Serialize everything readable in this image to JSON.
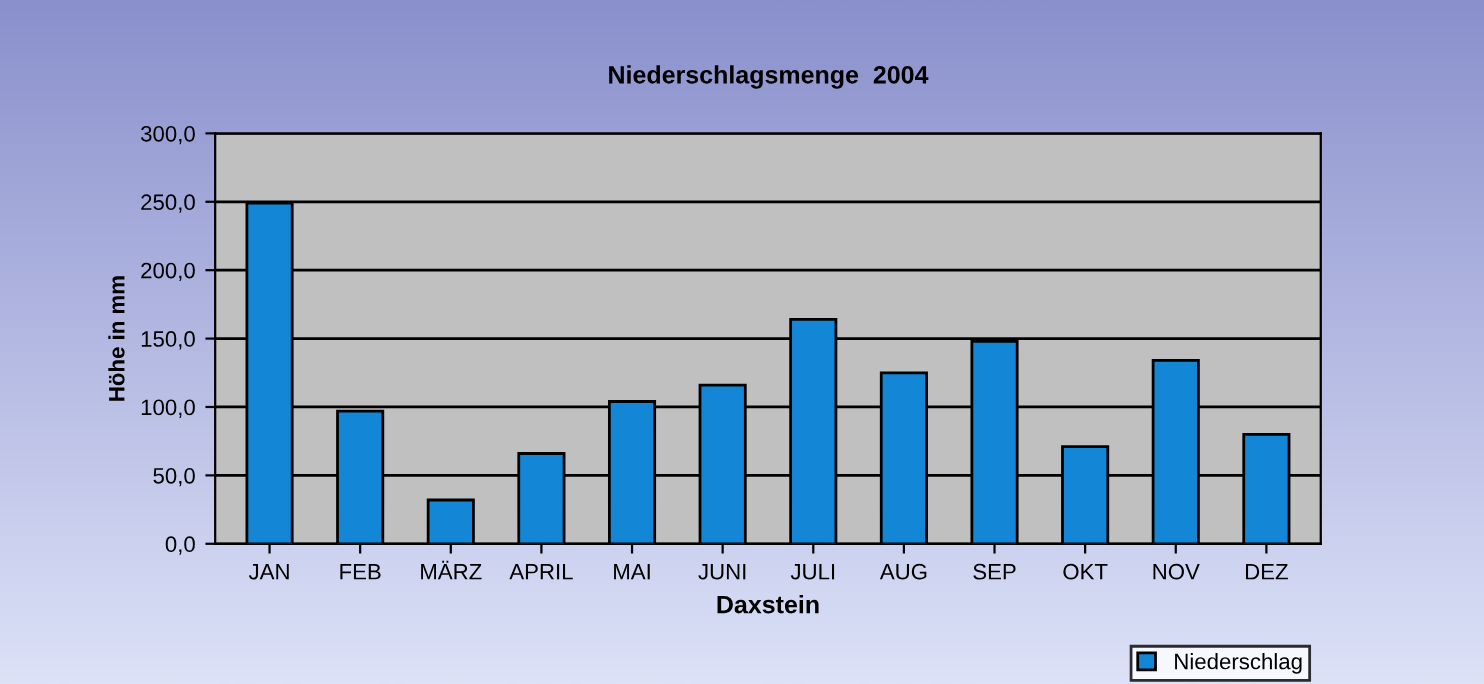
{
  "chart_data": {
    "type": "bar",
    "title": "Niederschlagsmenge  2004",
    "xlabel": "Daxstein",
    "ylabel": "Höhe in mm",
    "categories": [
      "JAN",
      "FEB",
      "MÄRZ",
      "APRIL",
      "MAI",
      "JUNI",
      "JULI",
      "AUG",
      "SEP",
      "OKT",
      "NOV",
      "DEZ"
    ],
    "series": [
      {
        "name": "Niederschlag",
        "color": "#1386d6",
        "values": [
          249,
          97,
          32,
          66,
          104,
          116,
          164,
          125,
          148,
          71,
          134,
          80
        ]
      }
    ],
    "ylim": [
      0,
      300
    ],
    "yticks": [
      {
        "value": 0,
        "label": "0,0"
      },
      {
        "value": 50,
        "label": "50,0"
      },
      {
        "value": 100,
        "label": "100,0"
      },
      {
        "value": 150,
        "label": "150,0"
      },
      {
        "value": 200,
        "label": "200,0"
      },
      {
        "value": 250,
        "label": "250,0"
      },
      {
        "value": 300,
        "label": "300,0"
      }
    ],
    "grid": "y",
    "legend": "bottom right"
  }
}
